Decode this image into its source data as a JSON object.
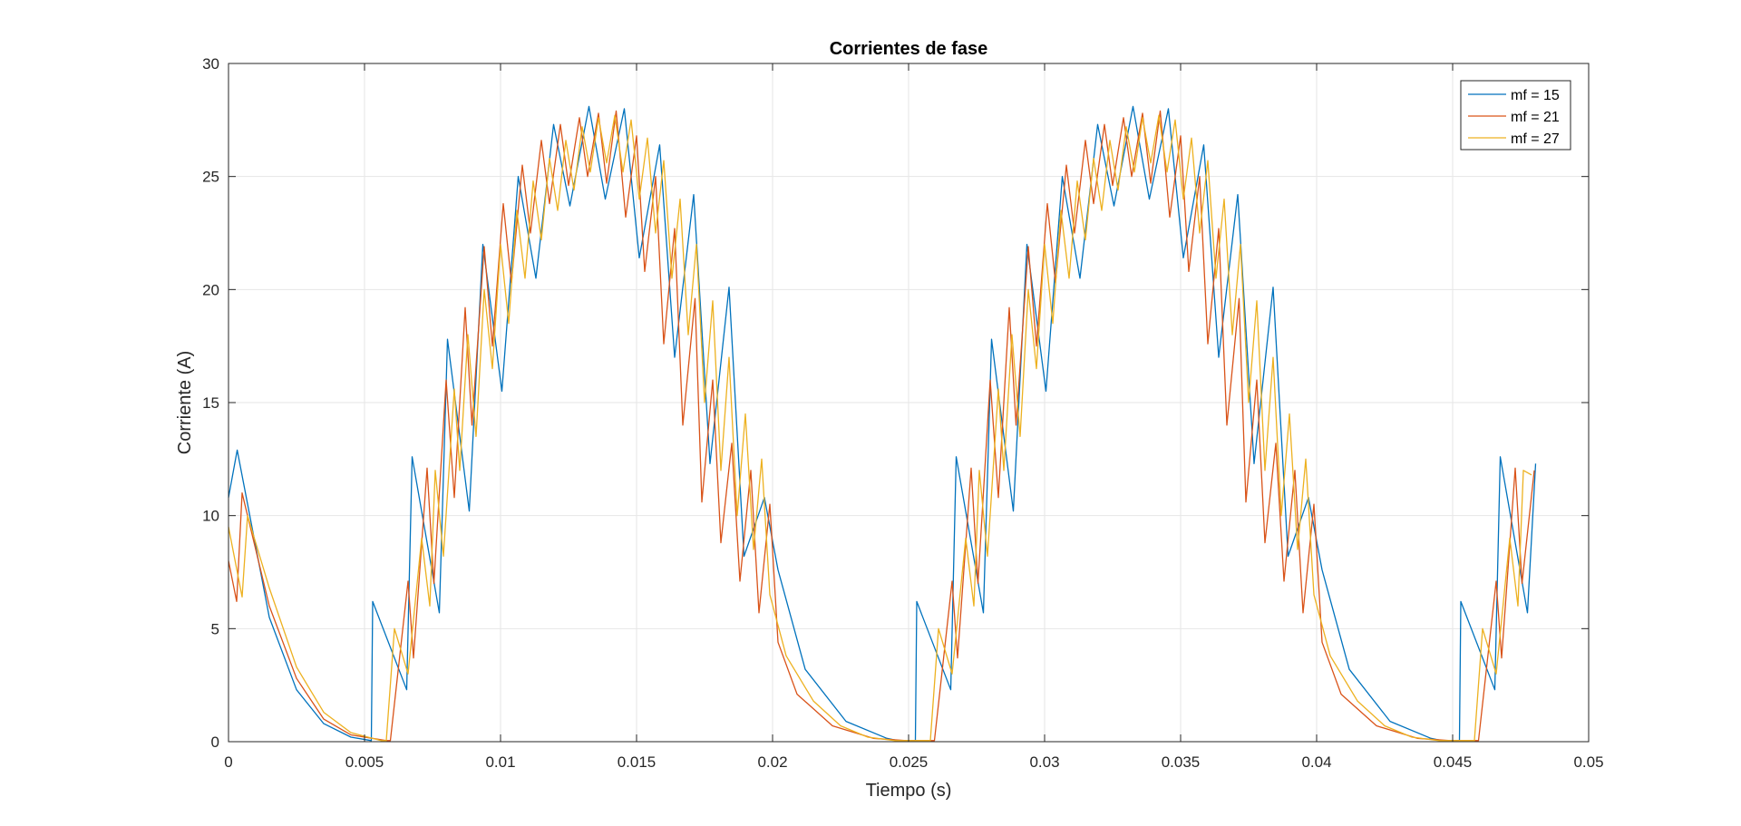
{
  "chart_data": {
    "type": "line",
    "title": "Corrientes de fase",
    "xlabel": "Tiempo (s)",
    "ylabel": "Corriente (A)",
    "xlim": [
      0,
      0.05
    ],
    "ylim": [
      0,
      30
    ],
    "xticks": [
      0,
      0.005,
      0.01,
      0.015,
      0.02,
      0.025,
      0.03,
      0.035,
      0.04,
      0.045,
      0.05
    ],
    "xtick_labels": [
      "0",
      "0.005",
      "0.01",
      "0.015",
      "0.02",
      "0.025",
      "0.03",
      "0.035",
      "0.04",
      "0.045",
      "0.05"
    ],
    "yticks": [
      0,
      5,
      10,
      15,
      20,
      25,
      30
    ],
    "ytick_labels": [
      "0",
      "5",
      "10",
      "15",
      "20",
      "25",
      "30"
    ],
    "grid": true,
    "legend_position": "top-right",
    "period": 0.02,
    "x_end": 0.048,
    "series": [
      {
        "name": "mf = 15",
        "color": "#0072BD",
        "x": [
          0,
          0.00032,
          0.0015,
          0.0025,
          0.0035,
          0.0045,
          0.00525,
          0.0053,
          0.00655,
          0.00675,
          0.00775,
          0.00805,
          0.00885,
          0.00935,
          0.01005,
          0.01065,
          0.0113,
          0.01195,
          0.01255,
          0.01325,
          0.01385,
          0.01455,
          0.0151,
          0.01585,
          0.0164,
          0.0171,
          0.0177,
          0.0184,
          0.01895,
          0.0197,
          0.0202,
          0.0212,
          0.0227,
          0.0242,
          0.0246,
          0.02525,
          0.0253,
          0.02655,
          0.02675,
          0.02775,
          0.02805,
          0.02885,
          0.02935,
          0.03005,
          0.03065,
          0.0313,
          0.03195,
          0.03255,
          0.03325,
          0.03385,
          0.03455,
          0.0351,
          0.03585,
          0.0364,
          0.0371,
          0.0377,
          0.0384,
          0.03895,
          0.0397,
          0.0402,
          0.0412,
          0.0427,
          0.0442,
          0.0446,
          0.04525,
          0.0453,
          0.04655,
          0.04675,
          0.04775,
          0.04805
        ],
        "values": [
          10.8,
          12.9,
          5.5,
          2.3,
          0.8,
          0.2,
          0.05,
          6.2,
          2.3,
          12.6,
          5.7,
          17.8,
          10.2,
          22.0,
          15.5,
          25.0,
          20.5,
          27.3,
          23.7,
          28.1,
          24.0,
          28.0,
          21.4,
          26.4,
          17.0,
          24.2,
          12.3,
          20.1,
          8.2,
          10.8,
          7.6,
          3.2,
          0.9,
          0.15,
          0.05,
          0.05,
          6.2,
          2.3,
          12.6,
          5.7,
          17.8,
          10.2,
          22.0,
          15.5,
          25.0,
          20.5,
          27.3,
          23.7,
          28.1,
          24.0,
          28.0,
          21.4,
          26.4,
          17.0,
          24.2,
          12.3,
          20.1,
          8.2,
          10.8,
          7.6,
          3.2,
          0.9,
          0.15,
          0.05,
          0.05,
          6.2,
          2.3,
          12.6,
          5.7,
          12.3
        ]
      },
      {
        "name": "mf = 21",
        "color": "#D95319",
        "x": [
          0,
          0.0003,
          0.0005,
          0.0015,
          0.0025,
          0.0035,
          0.0045,
          0.0058,
          0.00595,
          0.0066,
          0.0068,
          0.0073,
          0.00755,
          0.008,
          0.0083,
          0.0087,
          0.00895,
          0.0094,
          0.0097,
          0.0101,
          0.0104,
          0.0108,
          0.0111,
          0.0115,
          0.0118,
          0.0122,
          0.0125,
          0.0129,
          0.0132,
          0.0136,
          0.0139,
          0.01425,
          0.0146,
          0.015,
          0.0153,
          0.0157,
          0.016,
          0.0164,
          0.0167,
          0.01715,
          0.0174,
          0.0178,
          0.0181,
          0.0185,
          0.0188,
          0.0192,
          0.0195,
          0.0199,
          0.0202,
          0.0209,
          0.0222,
          0.0237,
          0.0249,
          0.0258,
          0.02595,
          0.0266,
          0.0268,
          0.0273,
          0.02755,
          0.028,
          0.0283,
          0.0287,
          0.02895,
          0.0294,
          0.0297,
          0.0301,
          0.0304,
          0.0308,
          0.0311,
          0.0315,
          0.0318,
          0.0322,
          0.0325,
          0.0329,
          0.0332,
          0.0336,
          0.0339,
          0.03425,
          0.0346,
          0.035,
          0.0353,
          0.0357,
          0.036,
          0.0364,
          0.0367,
          0.03715,
          0.0374,
          0.0378,
          0.0381,
          0.0385,
          0.0388,
          0.0392,
          0.0395,
          0.0399,
          0.0402,
          0.0409,
          0.0422,
          0.0437,
          0.0449,
          0.0458,
          0.04595,
          0.0466,
          0.0468,
          0.0473,
          0.04755,
          0.048
        ],
        "values": [
          8.0,
          6.2,
          11.0,
          6.0,
          2.8,
          1.0,
          0.3,
          0.05,
          0.05,
          7.1,
          3.7,
          12.1,
          7.0,
          16.0,
          10.8,
          19.2,
          14.0,
          21.9,
          17.5,
          23.8,
          20.3,
          25.5,
          22.5,
          26.6,
          23.8,
          27.3,
          24.6,
          27.6,
          25.0,
          27.8,
          24.7,
          27.9,
          23.2,
          26.8,
          20.8,
          25.0,
          17.6,
          22.7,
          14.0,
          19.6,
          10.6,
          16.0,
          8.8,
          13.2,
          7.1,
          12.0,
          5.7,
          10.5,
          4.4,
          2.1,
          0.7,
          0.15,
          0.05,
          0.05,
          0.05,
          7.1,
          3.7,
          12.1,
          7.0,
          16.0,
          10.8,
          19.2,
          14.0,
          21.9,
          17.5,
          23.8,
          20.3,
          25.5,
          22.5,
          26.6,
          23.8,
          27.3,
          24.6,
          27.6,
          25.0,
          27.8,
          24.7,
          27.9,
          23.2,
          26.8,
          20.8,
          25.0,
          17.6,
          22.7,
          14.0,
          19.6,
          10.6,
          16.0,
          8.8,
          13.2,
          7.1,
          12.0,
          5.7,
          10.5,
          4.4,
          2.1,
          0.7,
          0.15,
          0.05,
          0.05,
          0.05,
          7.1,
          3.7,
          12.1,
          7.0,
          12.0
        ]
      },
      {
        "name": "mf = 27",
        "color": "#EDB120",
        "x": [
          0,
          0.0005,
          0.0007,
          0.0015,
          0.0025,
          0.0035,
          0.0045,
          0.0056,
          0.0058,
          0.0061,
          0.0066,
          0.0071,
          0.0074,
          0.0076,
          0.0079,
          0.0083,
          0.0085,
          0.0088,
          0.0091,
          0.0094,
          0.0097,
          0.01,
          0.0103,
          0.0106,
          0.0109,
          0.0112,
          0.0115,
          0.0118,
          0.0121,
          0.0124,
          0.0127,
          0.013,
          0.0133,
          0.0136,
          0.0139,
          0.0142,
          0.0145,
          0.0148,
          0.0151,
          0.0154,
          0.0157,
          0.016,
          0.0163,
          0.0166,
          0.0169,
          0.0172,
          0.0175,
          0.0178,
          0.0181,
          0.0184,
          0.0187,
          0.019,
          0.0193,
          0.0196,
          0.0199,
          0.0205,
          0.0215,
          0.0225,
          0.0235,
          0.0245,
          0.0256,
          0.0258,
          0.0261,
          0.0266,
          0.0271,
          0.0274,
          0.0276,
          0.0279,
          0.0283,
          0.0285,
          0.0288,
          0.0291,
          0.0294,
          0.0297,
          0.03,
          0.0303,
          0.0306,
          0.0309,
          0.0312,
          0.0315,
          0.0318,
          0.0321,
          0.0324,
          0.0327,
          0.033,
          0.0333,
          0.0336,
          0.0339,
          0.0342,
          0.0345,
          0.0348,
          0.0351,
          0.0354,
          0.0357,
          0.036,
          0.0363,
          0.0366,
          0.0369,
          0.0372,
          0.0375,
          0.0378,
          0.0381,
          0.0384,
          0.0387,
          0.039,
          0.0393,
          0.0396,
          0.0399,
          0.0405,
          0.0415,
          0.0425,
          0.0435,
          0.0445,
          0.0456,
          0.0458,
          0.0461,
          0.0466,
          0.0471,
          0.0474,
          0.0476,
          0.0479
        ],
        "values": [
          9.5,
          6.4,
          10.0,
          6.8,
          3.3,
          1.3,
          0.4,
          0.05,
          0.05,
          5.0,
          3.0,
          9.0,
          6.0,
          12.0,
          8.2,
          15.6,
          12.0,
          18.0,
          13.5,
          20.0,
          16.5,
          22.0,
          18.5,
          23.5,
          20.5,
          24.8,
          22.2,
          25.8,
          23.5,
          26.6,
          24.4,
          27.2,
          25.2,
          27.6,
          25.6,
          27.7,
          25.2,
          27.5,
          24.0,
          26.7,
          22.5,
          25.7,
          20.5,
          24.0,
          18.0,
          22.0,
          15.0,
          19.5,
          12.0,
          17.0,
          10.0,
          14.5,
          8.5,
          12.5,
          6.5,
          3.8,
          1.8,
          0.7,
          0.2,
          0.05,
          0.05,
          0.05,
          5.0,
          3.0,
          9.0,
          6.0,
          12.0,
          8.2,
          15.6,
          12.0,
          18.0,
          13.5,
          20.0,
          16.5,
          22.0,
          18.5,
          23.5,
          20.5,
          24.8,
          22.2,
          25.8,
          23.5,
          26.6,
          24.4,
          27.2,
          25.2,
          27.6,
          25.6,
          27.7,
          25.2,
          27.5,
          24.0,
          26.7,
          22.5,
          25.7,
          20.5,
          24.0,
          18.0,
          22.0,
          15.0,
          19.5,
          12.0,
          17.0,
          10.0,
          14.5,
          8.5,
          12.5,
          6.5,
          3.8,
          1.8,
          0.7,
          0.2,
          0.05,
          0.05,
          0.05,
          5.0,
          3.0,
          9.0,
          6.0,
          12.0,
          11.8
        ]
      }
    ]
  }
}
